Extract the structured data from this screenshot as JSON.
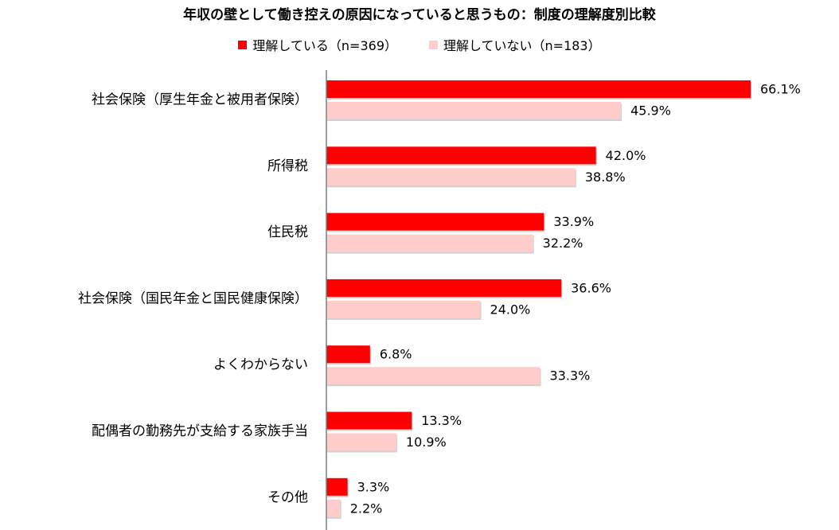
{
  "chart_data": {
    "type": "bar",
    "orientation": "horizontal",
    "title": "年収の壁として働き控えの原因になっていると思うもの：制度の理解度別比較",
    "categories": [
      "社会保険（厚生年金と被用者保険）",
      "所得税",
      "住民税",
      "社会保険（国民年金と国民健康保険）",
      "よくわからない",
      "配偶者の勤務先が支給する家族手当",
      "その他"
    ],
    "series": [
      {
        "name": "理解している（n=369）",
        "color": "#ff0000",
        "values": [
          66.1,
          42.0,
          33.9,
          36.6,
          6.8,
          13.3,
          3.3
        ]
      },
      {
        "name": "理解していない（n=183）",
        "color": "#ffcccc",
        "values": [
          45.9,
          38.8,
          32.2,
          24.0,
          33.3,
          10.9,
          2.2
        ]
      }
    ],
    "value_suffix": "%",
    "xlim": [
      0,
      70
    ],
    "legend_position": "top",
    "grid": false
  }
}
